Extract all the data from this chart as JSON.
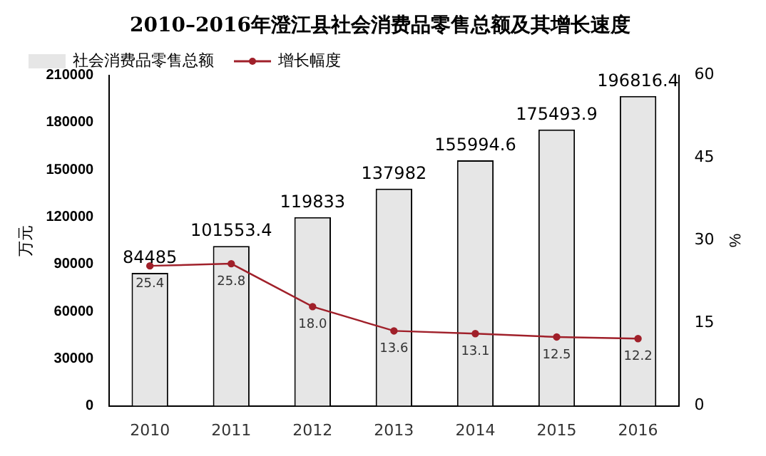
{
  "chart_data": {
    "type": "bar",
    "title": "2010–2016年澄江县社会消费品零售总额及其增长速度",
    "ylabel": "万元",
    "y2label": "%",
    "categories": [
      "2010",
      "2011",
      "2012",
      "2013",
      "2014",
      "2015",
      "2016"
    ],
    "series": [
      {
        "name": "社会消费品零售总额",
        "color": "#e6e6e6",
        "values": [
          84485,
          101553.4,
          119833,
          137982,
          155994.6,
          175493.9,
          196816.4
        ]
      },
      {
        "name": "增长幅度",
        "type": "line",
        "axis": "y2",
        "color": "#a0202a",
        "values": [
          25.4,
          25.8,
          18.0,
          13.6,
          13.1,
          12.5,
          12.2
        ],
        "value_labels": [
          "25.4",
          "25.8",
          "18.0",
          "13.6",
          "13.1",
          "12.5",
          "12.2"
        ]
      }
    ],
    "ylim": [
      0,
      210000
    ],
    "yticks": [
      0,
      30000,
      60000,
      90000,
      120000,
      150000,
      180000,
      210000
    ],
    "y2lim": [
      0,
      60
    ],
    "y2ticks": [
      0,
      15,
      30,
      45,
      60
    ],
    "data_labels": true,
    "legend": "top left",
    "marker": "circle"
  }
}
